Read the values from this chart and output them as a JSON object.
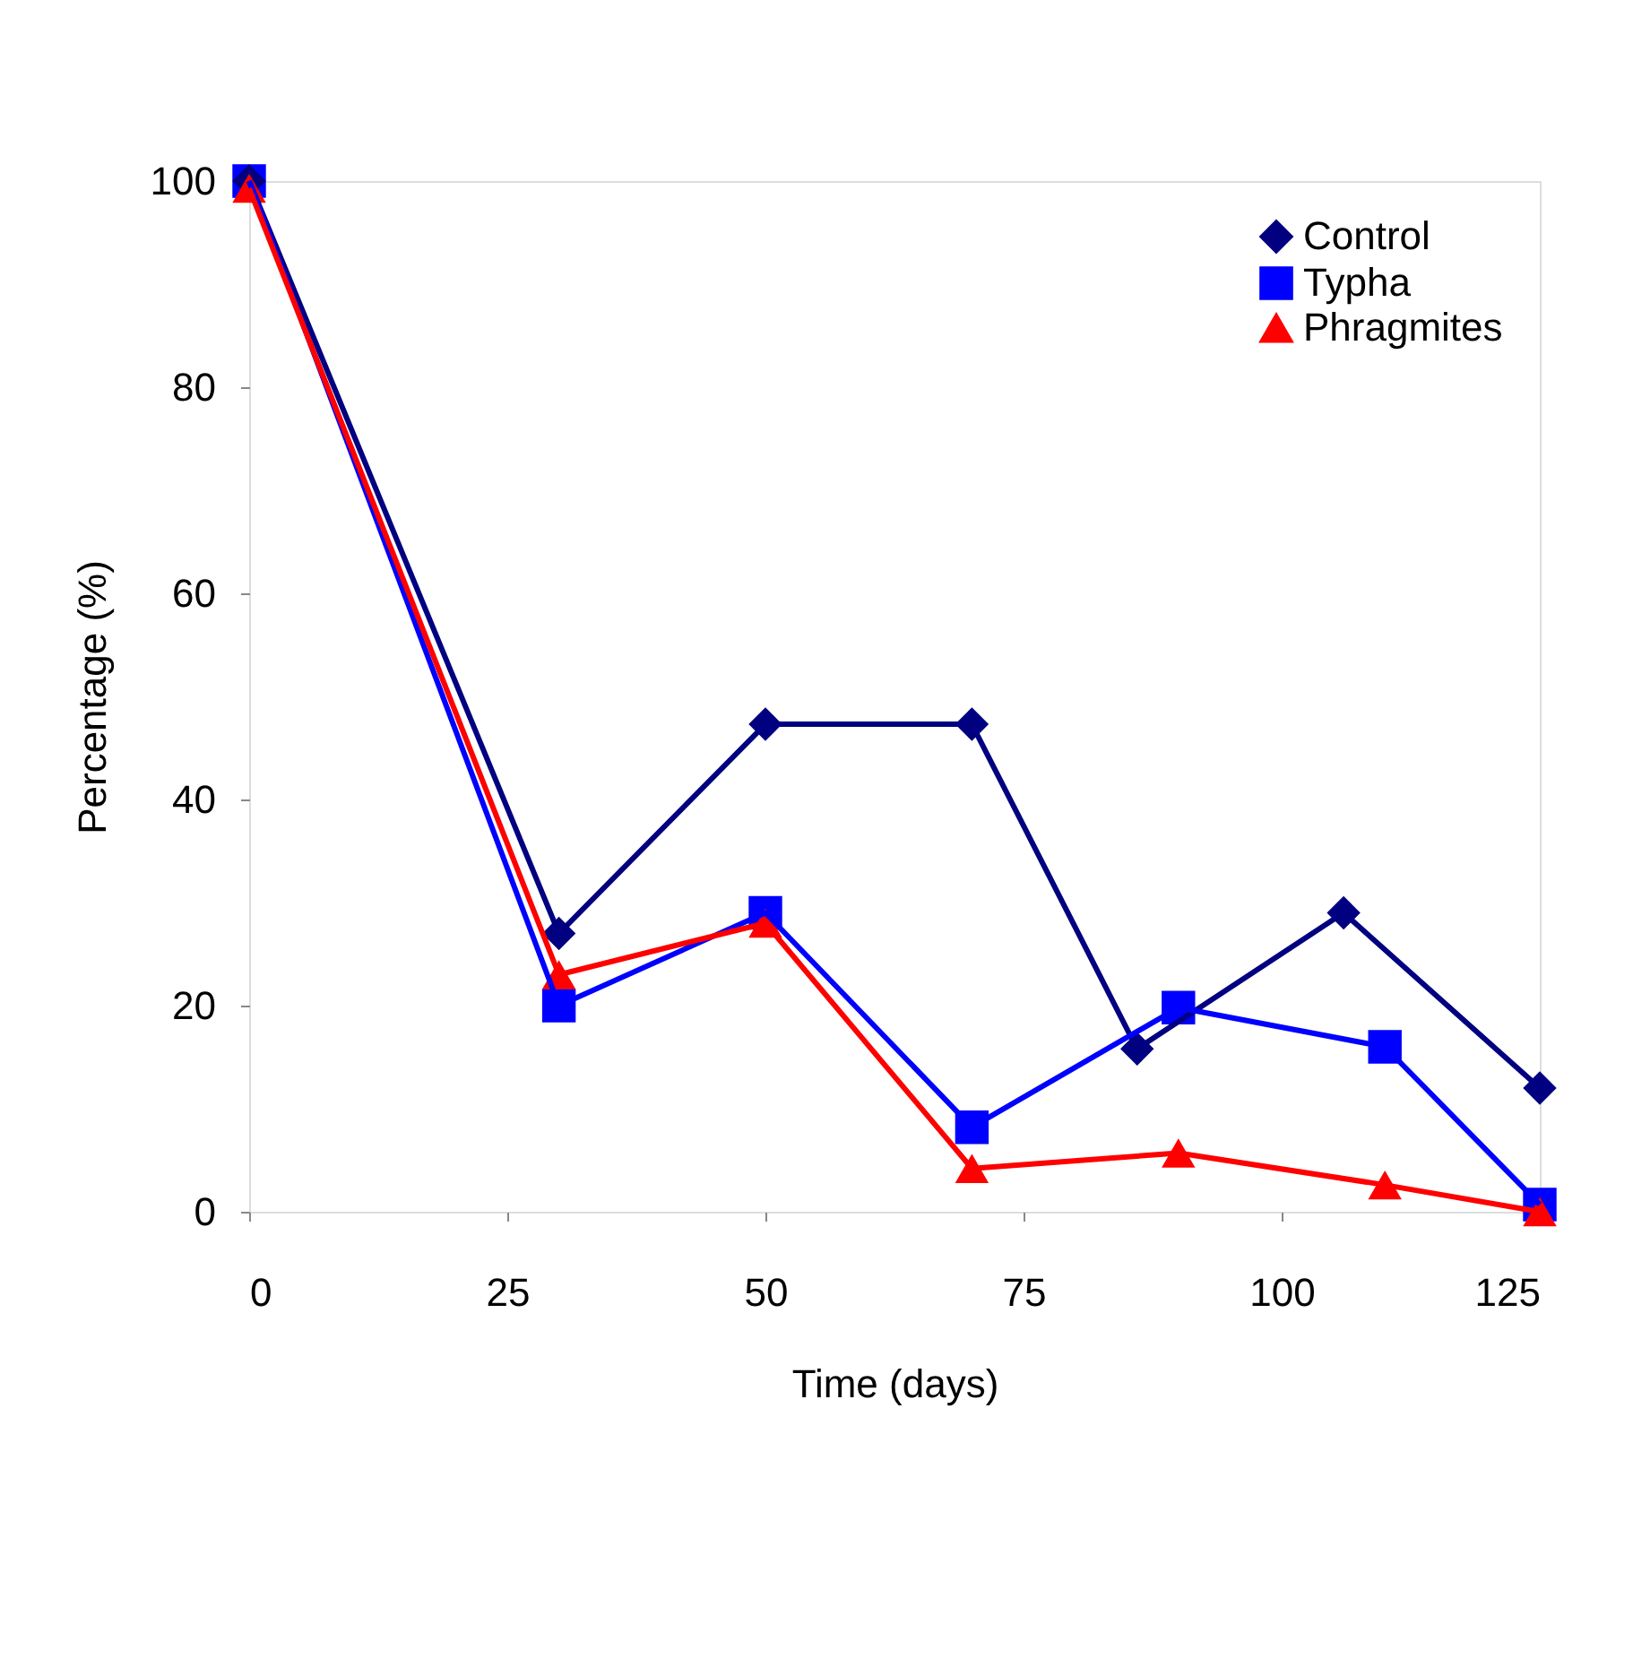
{
  "chart_data": {
    "type": "line",
    "xlabel": "Time (days)",
    "ylabel": "Percentage (%)",
    "xlim": [
      0,
      125
    ],
    "xticks": [
      0,
      25,
      50,
      75,
      100,
      125
    ],
    "ylim": [
      0,
      100
    ],
    "yticks": [
      0,
      20,
      40,
      60,
      80,
      100
    ],
    "grid": false,
    "legend": "top right",
    "series": [
      {
        "name": "Control",
        "color": "#000080",
        "marker": "diamond",
        "x": [
          0,
          30,
          50,
          70,
          86,
          106,
          125
        ],
        "values": [
          100,
          27,
          47.3,
          47.3,
          15.8,
          29,
          12
        ]
      },
      {
        "name": "Typha",
        "color": "#0000ff",
        "marker": "square",
        "x": [
          0,
          30,
          50,
          70,
          90,
          110,
          125
        ],
        "values": [
          100,
          20,
          29,
          8.2,
          19.8,
          16,
          0.7
        ]
      },
      {
        "name": "Phragmites",
        "color": "#ff0000",
        "marker": "triangle",
        "x": [
          0,
          30,
          50,
          70,
          90,
          110,
          125
        ],
        "values": [
          99.3,
          23,
          28,
          4.2,
          5.7,
          2.6,
          0
        ]
      }
    ]
  }
}
